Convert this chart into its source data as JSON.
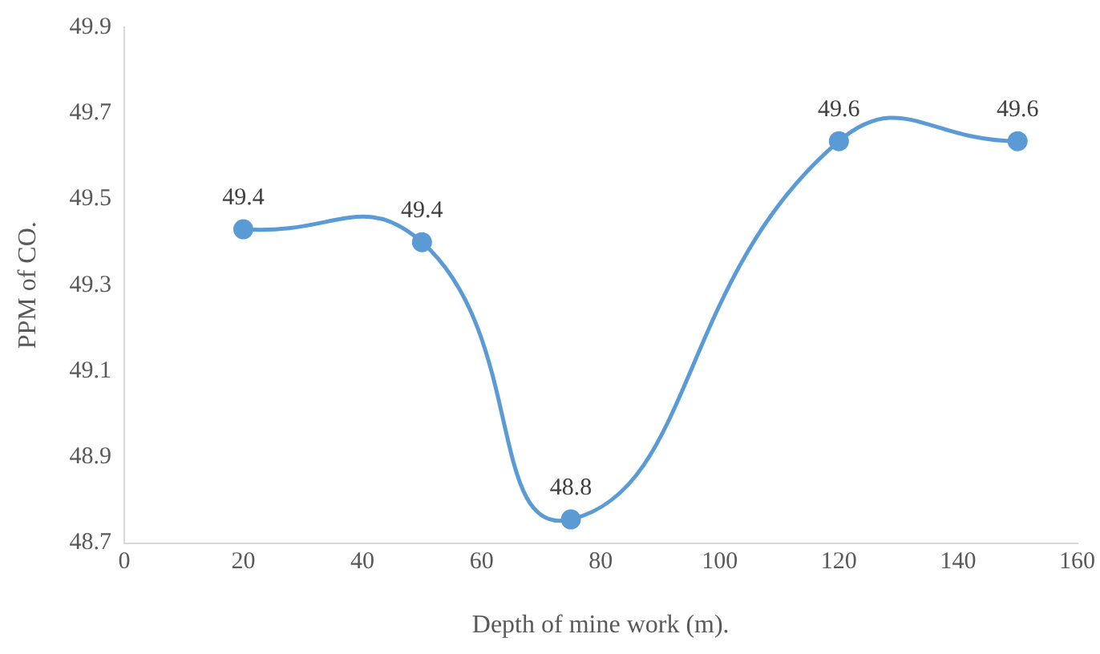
{
  "chart_data": {
    "type": "line",
    "xlabel": "Depth of mine work (m).",
    "ylabel": "PPM of CO.",
    "x": [
      20,
      50,
      75,
      120,
      150
    ],
    "series": [
      {
        "color": "#5b9bd5",
        "values": [
          49.43,
          49.4,
          48.755,
          49.635,
          49.635
        ],
        "value_labels": [
          "49.4",
          "49.4",
          "48.8",
          "49.6",
          "49.6"
        ]
      }
    ],
    "xlim": [
      0,
      160
    ],
    "xticks": [
      0,
      20,
      40,
      60,
      80,
      100,
      120,
      140,
      160
    ],
    "ylim": [
      48.7,
      49.9
    ],
    "yticks": [
      48.7,
      48.9,
      49.1,
      49.3,
      49.5,
      49.7,
      49.9
    ],
    "grid": false,
    "marker": "circle",
    "line_style": "solid"
  }
}
